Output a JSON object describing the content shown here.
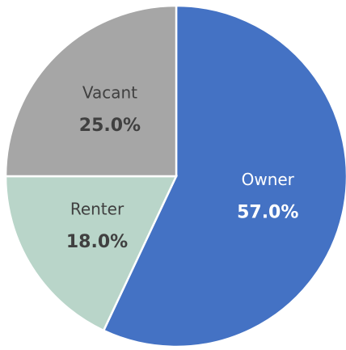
{
  "chart_data": {
    "type": "pie",
    "categories": [
      "Owner",
      "Renter",
      "Vacant"
    ],
    "values": [
      57,
      18,
      25
    ],
    "value_labels": [
      "57.0%",
      "18.0%",
      "25.0%"
    ],
    "colors": [
      "#4472c4",
      "#b9d5c9",
      "#a6a6a6"
    ]
  }
}
